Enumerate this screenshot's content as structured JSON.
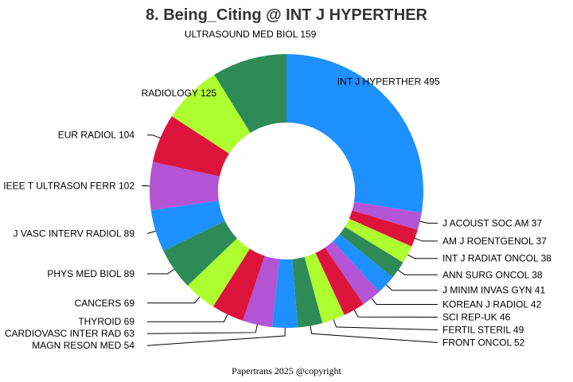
{
  "chart_data": {
    "type": "pie",
    "variant": "donut",
    "title": "8. Being_Citing @ INT J HYPERTHER",
    "footer": "Papertrans 2025 @copyright",
    "slices": [
      {
        "label": "INT J HYPERTHER",
        "value": 495,
        "color": "#1e90ff"
      },
      {
        "label": "J ACOUST SOC AM",
        "value": 37,
        "color": "#b455d6"
      },
      {
        "label": "AM J ROENTGENOL",
        "value": 37,
        "color": "#dc143c"
      },
      {
        "label": "INT J RADIAT ONCOL",
        "value": 38,
        "color": "#adff2f"
      },
      {
        "label": "ANN SURG ONCOL",
        "value": 38,
        "color": "#2e8b57"
      },
      {
        "label": "J MINIM INVAS GYN",
        "value": 41,
        "color": "#1e90ff"
      },
      {
        "label": "KOREAN J RADIOL",
        "value": 42,
        "color": "#b455d6"
      },
      {
        "label": "SCI REP-UK",
        "value": 46,
        "color": "#dc143c"
      },
      {
        "label": "FERTIL STERIL",
        "value": 49,
        "color": "#adff2f"
      },
      {
        "label": "FRONT ONCOL",
        "value": 52,
        "color": "#2e8b57"
      },
      {
        "label": "MAGN RESON MED",
        "value": 54,
        "color": "#1e90ff"
      },
      {
        "label": "CARDIOVASC INTER RAD",
        "value": 63,
        "color": "#b455d6"
      },
      {
        "label": "THYROID",
        "value": 69,
        "color": "#dc143c"
      },
      {
        "label": "CANCERS",
        "value": 69,
        "color": "#adff2f"
      },
      {
        "label": "PHYS MED BIOL",
        "value": 89,
        "color": "#2e8b57"
      },
      {
        "label": "J VASC INTERV RADIOL",
        "value": 89,
        "color": "#1e90ff"
      },
      {
        "label": "IEEE T ULTRASON FERR",
        "value": 102,
        "color": "#b455d6"
      },
      {
        "label": "EUR RADIOL",
        "value": 104,
        "color": "#dc143c"
      },
      {
        "label": "RADIOLOGY",
        "value": 125,
        "color": "#adff2f"
      },
      {
        "label": "ULTRASOUND MED BIOL",
        "value": 159,
        "color": "#2e8b57"
      }
    ]
  }
}
